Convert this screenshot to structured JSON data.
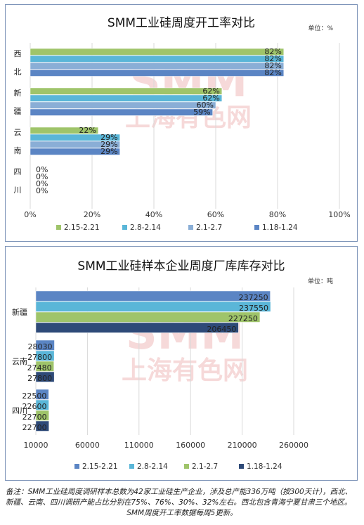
{
  "footnote": {
    "line1": "备注：SMM工业硅周度调研样本总数为42家工业硅生产企业，涉及总产能336万吨（按300天计），西北、",
    "line2": "新疆、云南、四川调研产能占比分别在75%、76%、30%、32%左右。西北包含青海宁夏甘肃三个地区。",
    "line3": "SMM周度开工率数据每周5更新。"
  },
  "chart_data": [
    {
      "type": "bar",
      "orientation": "horizontal",
      "title": "SMM工业硅周度开工率对比",
      "unit_label": "单位：%",
      "watermark": [
        "SMM",
        "上海有色网"
      ],
      "categories": [
        "西北",
        "新疆",
        "云南",
        "四川"
      ],
      "category_lines": [
        [
          "西",
          "北"
        ],
        [
          "新",
          "疆"
        ],
        [
          "云",
          "南"
        ],
        [
          "四",
          "川"
        ]
      ],
      "xlim": [
        0,
        100
      ],
      "xticks": [
        0,
        20,
        40,
        60,
        80,
        100
      ],
      "tick_suffix": "%",
      "value_suffix": "%",
      "grid": true,
      "legend_position": "bottom",
      "series": [
        {
          "name": "2.15-2.21",
          "color": "#9fc46a",
          "values": [
            82,
            62,
            22,
            0
          ]
        },
        {
          "name": "2.8-2.14",
          "color": "#5ab6d8",
          "values": [
            82,
            62,
            29,
            0
          ]
        },
        {
          "name": "2.1-2.7",
          "color": "#8aaed6",
          "values": [
            82,
            60,
            29,
            0
          ]
        },
        {
          "name": "1.18-1.24",
          "color": "#5b85c4",
          "values": [
            82,
            59,
            29,
            0
          ]
        }
      ]
    },
    {
      "type": "bar",
      "orientation": "horizontal",
      "title": "SMM工业硅样本企业周度厂库库存对比",
      "unit_label": "单位：吨",
      "watermark": [
        "SMM",
        "上海有色网"
      ],
      "categories": [
        "新疆",
        "云南",
        "四川"
      ],
      "xlim": [
        10000,
        260000
      ],
      "xticks": [
        10000,
        60000,
        110000,
        160000,
        210000,
        260000
      ],
      "tick_suffix": "",
      "value_suffix": "",
      "grid": true,
      "legend_position": "bottom",
      "series": [
        {
          "name": "2.15-2.21",
          "color": "#5b85c4",
          "values": [
            237250,
            28030,
            22500
          ]
        },
        {
          "name": "2.8-2.14",
          "color": "#5ab6d8",
          "values": [
            237550,
            27800,
            22600
          ]
        },
        {
          "name": "2.1-2.7",
          "color": "#9fc46a",
          "values": [
            227250,
            27480,
            22700
          ]
        },
        {
          "name": "1.18-1.24",
          "color": "#2e4a78",
          "values": [
            206450,
            27800,
            22700
          ]
        }
      ]
    }
  ]
}
